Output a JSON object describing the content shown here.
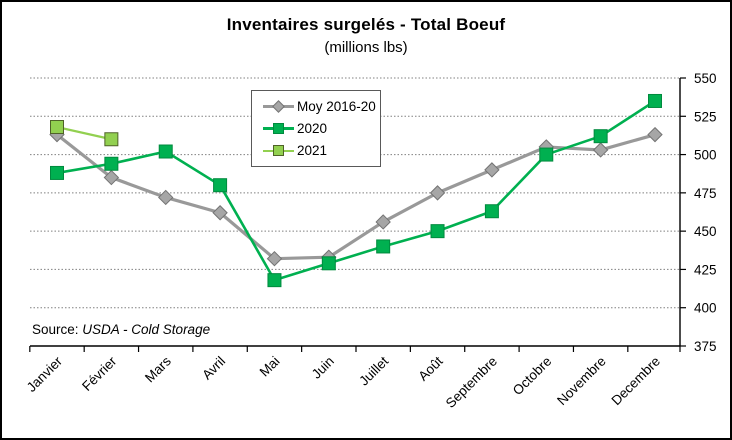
{
  "header": {
    "title": "Inventaires surgelés - Total Boeuf",
    "subtitle": "(millions lbs)"
  },
  "source": {
    "prefix": "Source: ",
    "name": "USDA - Cold Storage"
  },
  "legend": {
    "items": [
      {
        "label": "Moy 2016-20",
        "marker": "diamond",
        "color": "#999999"
      },
      {
        "label": "2020",
        "marker": "square",
        "color": "#00B050"
      },
      {
        "label": "2021",
        "marker": "square-light",
        "color": "#92D050"
      }
    ]
  },
  "colors": {
    "moy_line": "#999999",
    "moy_marker_fill": "#A6A6A6",
    "moy_marker_stroke": "#737373",
    "green_2020": "#00B050",
    "green_2020_stroke": "#008A3E",
    "green_2021": "#92D050",
    "green_2021_stroke": "#4F6228",
    "gridline": "#808080",
    "axis": "#000000"
  },
  "chart_data": {
    "type": "line",
    "title": "Inventaires surgelés - Total Boeuf",
    "subtitle": "(millions lbs)",
    "categories": [
      "Janvier",
      "Février",
      "Mars",
      "Avril",
      "Mai",
      "Juin",
      "Juillet",
      "Août",
      "Septembre",
      "Octobre",
      "Novembre",
      "Decembre"
    ],
    "series": [
      {
        "name": "Moy 2016-20",
        "marker": "diamond",
        "color": "#999999",
        "marker_fill": "#A6A6A6",
        "marker_stroke": "#737373",
        "line_width": 3.2,
        "values": [
          513,
          485,
          472,
          462,
          432,
          433,
          456,
          475,
          490,
          505,
          503,
          513
        ]
      },
      {
        "name": "2020",
        "marker": "square",
        "color": "#00B050",
        "marker_fill": "#00B050",
        "marker_stroke": "#008A3E",
        "line_width": 2.6,
        "values": [
          488,
          494,
          502,
          480,
          418,
          429,
          440,
          450,
          463,
          500,
          512,
          535
        ]
      },
      {
        "name": "2021",
        "marker": "square",
        "color": "#92D050",
        "marker_fill": "#92D050",
        "marker_stroke": "#4F6228",
        "line_width": 2.2,
        "values": [
          518,
          510,
          null,
          null,
          null,
          null,
          null,
          null,
          null,
          null,
          null,
          null
        ]
      }
    ],
    "ylim": [
      375,
      550
    ],
    "yticks": [
      550,
      525,
      500,
      475,
      450,
      425,
      400,
      375
    ],
    "ytick_step": 25,
    "y_axis_side": "right",
    "grid": "dotted-horizontal",
    "legend_position": "top-center",
    "x_label_rotation": -45
  }
}
